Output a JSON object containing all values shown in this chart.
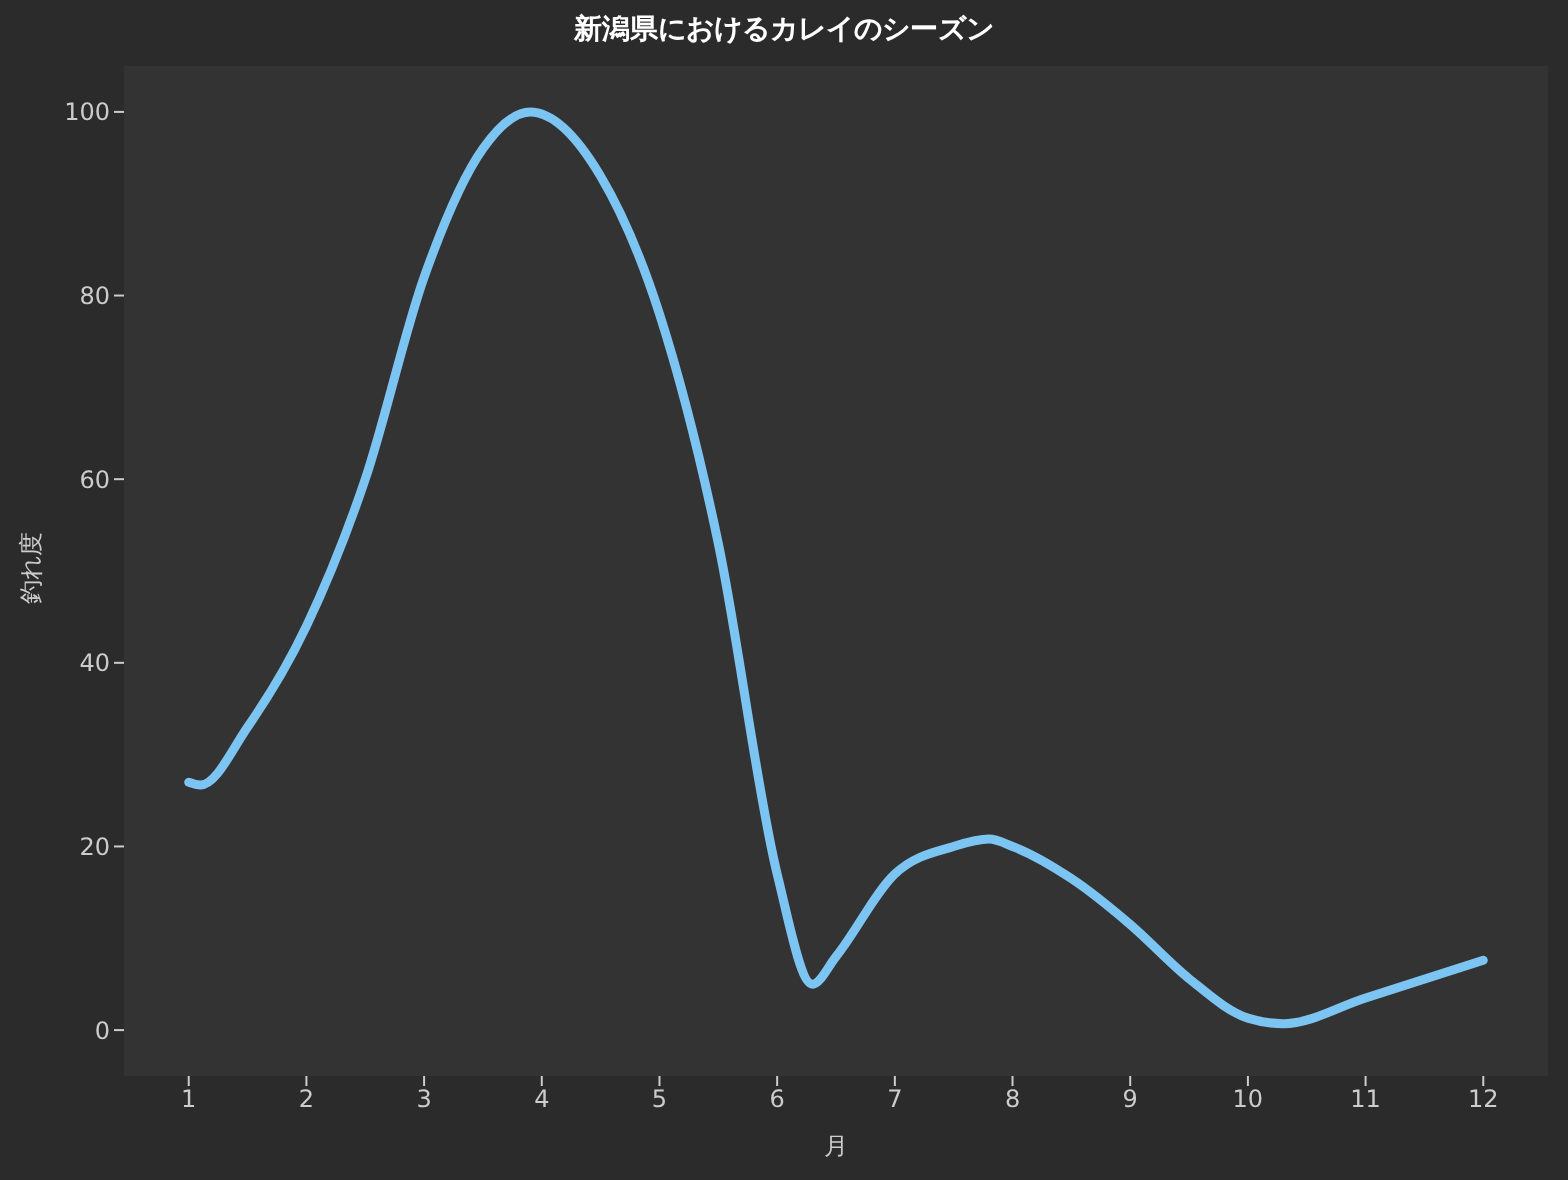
{
  "chart_data": {
    "type": "line",
    "title": "新潟県におけるカレイのシーズン",
    "xlabel": "月",
    "ylabel": "釣れ度",
    "series": [
      {
        "color": "#7cc4f2",
        "x": [
          1,
          1.1,
          1.5,
          2,
          2.5,
          3,
          3.5,
          3.9,
          4.5,
          5,
          5.5,
          6,
          6.3,
          6.5,
          7,
          7.5,
          7.8,
          8,
          8.5,
          9,
          9.5,
          10,
          10.3,
          11,
          12
        ],
        "values": [
          27,
          26.7,
          33,
          44,
          60,
          82,
          96,
          100,
          93,
          78,
          53,
          17,
          5,
          8,
          17,
          20,
          20.8,
          20,
          16.5,
          11.5,
          5.6,
          1.3,
          0.7,
          3.5,
          7.6
        ]
      }
    ],
    "xlim": [
      0.45,
      12.55
    ],
    "xticks": [
      1,
      2,
      3,
      4,
      5,
      6,
      7,
      8,
      9,
      10,
      11,
      12
    ],
    "ylim": [
      -5,
      105
    ],
    "yticks": [
      0,
      20,
      40,
      60,
      80,
      100
    ],
    "grid": false,
    "legend": false,
    "marker": "none",
    "line_style": "solid"
  }
}
